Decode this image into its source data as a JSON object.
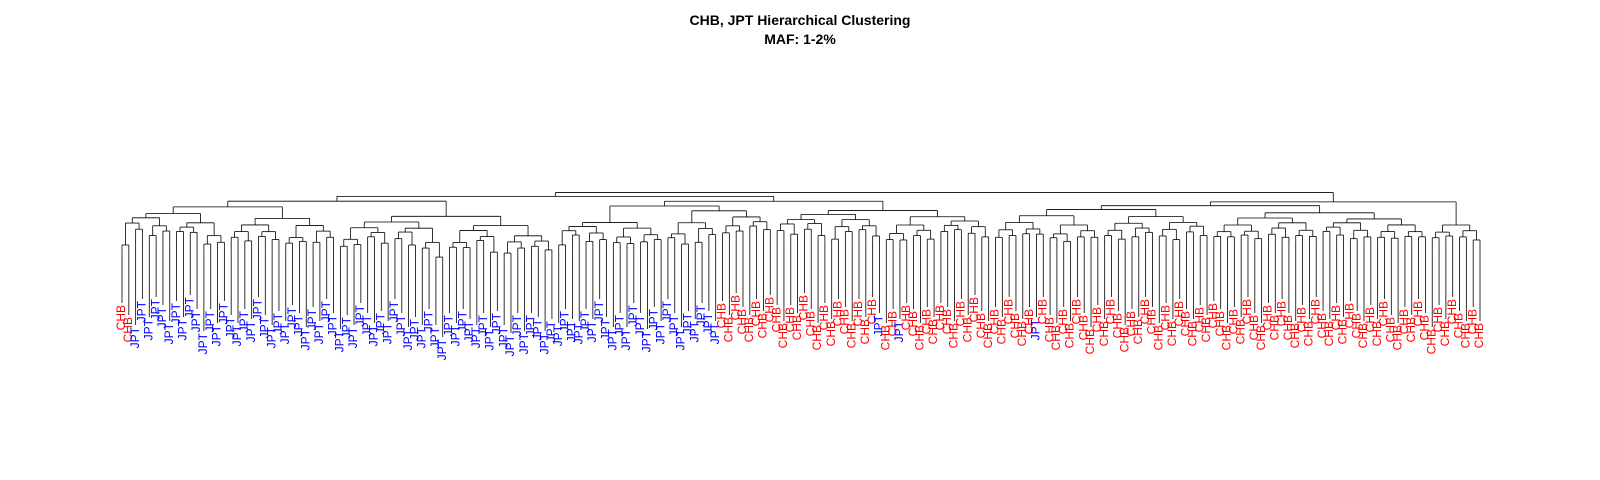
{
  "chart_data": {
    "type": "dendrogram",
    "title": "CHB, JPT Hierarchical Clustering",
    "subtitle": "MAF: 1-2%",
    "xlabel": "",
    "ylabel": "",
    "legend": "none",
    "colors": {
      "CHB": "#ff0000",
      "JPT": "#0000ff"
    },
    "leaf_labels": [
      "CHB",
      "CHB",
      "JPT",
      "JPT",
      "JPT",
      "JPT",
      "JPT",
      "JPT",
      "JPT",
      "JPT",
      "JPT",
      "JPT",
      "JPT",
      "JPT",
      "JPT",
      "JPT",
      "JPT",
      "JPT",
      "JPT",
      "JPT",
      "JPT",
      "JPT",
      "JPT",
      "JPT",
      "JPT",
      "JPT",
      "JPT",
      "JPT",
      "JPT",
      "JPT",
      "JPT",
      "JPT",
      "JPT",
      "JPT",
      "JPT",
      "JPT",
      "JPT",
      "JPT",
      "JPT",
      "JPT",
      "JPT",
      "JPT",
      "JPT",
      "JPT",
      "JPT",
      "JPT",
      "JPT",
      "JPT",
      "JPT",
      "JPT",
      "JPT",
      "JPT",
      "JPT",
      "JPT",
      "JPT",
      "JPT",
      "JPT",
      "JPT",
      "JPT",
      "JPT",
      "JPT",
      "JPT",
      "JPT",
      "JPT",
      "JPT",
      "JPT",
      "JPT",
      "JPT",
      "JPT",
      "JPT",
      "JPT",
      "JPT",
      "JPT",
      "JPT",
      "JPT",
      "JPT",
      "JPT",
      "JPT",
      "JPT",
      "JPT",
      "JPT",
      "JPT",
      "JPT",
      "JPT",
      "JPT",
      "JPT",
      "JPT",
      "JPT",
      "CHB",
      "CHB",
      "CHB",
      "CHB",
      "CHB",
      "CHB",
      "CHB",
      "CHB",
      "CHB",
      "CHB",
      "CHB",
      "CHB",
      "CHB",
      "CHB",
      "CHB",
      "CHB",
      "CHB",
      "CHB",
      "CHB",
      "CHB",
      "CHB",
      "CHB",
      "CHB",
      "JPT",
      "CHB",
      "CHB",
      "JPT",
      "CHB",
      "CHB",
      "CHB",
      "CHB",
      "CHB",
      "CHB",
      "CHB",
      "CHB",
      "CHB",
      "CHB",
      "CHB",
      "CHB",
      "CHB",
      "CHB",
      "CHB",
      "CHB",
      "CHB",
      "CHB",
      "CHB",
      "JPT",
      "CHB",
      "CHB",
      "CHB",
      "CHB",
      "CHB",
      "CHB",
      "CHB",
      "CHB",
      "CHB",
      "CHB",
      "CHB",
      "CHB",
      "CHB",
      "CHB",
      "CHB",
      "CHB",
      "CHB",
      "CHB",
      "CHB",
      "CHB",
      "CHB",
      "CHB",
      "CHB",
      "CHB",
      "CHB",
      "CHB",
      "CHB",
      "CHB",
      "CHB",
      "CHB",
      "CHB",
      "CHB",
      "CHB",
      "CHB",
      "CHB",
      "CHB",
      "CHB",
      "CHB",
      "CHB",
      "CHB",
      "CHB",
      "CHB",
      "CHB",
      "CHB",
      "CHB",
      "CHB",
      "CHB",
      "CHB",
      "CHB",
      "CHB",
      "CHB",
      "CHB",
      "CHB",
      "CHB",
      "CHB",
      "CHB",
      "CHB",
      "CHB",
      "CHB",
      "CHB",
      "CHB",
      "CHB",
      "CHB",
      "CHB",
      "CHB"
    ],
    "leaf_heights": [
      0.3,
      0.3,
      0.35,
      0.55,
      0.4,
      0.45,
      0.55,
      0.45,
      0.5,
      0.4,
      0.5,
      0.45,
      0.2,
      0.3,
      0.25,
      0.35,
      0.3,
      0.4,
      0.3,
      0.35,
      0.45,
      0.3,
      0.35,
      0.25,
      0.3,
      0.25,
      0.35,
      0.3,
      0.35,
      0.3,
      0.4,
      0.35,
      0.25,
      0.15,
      0.2,
      0.3,
      0.35,
      0.4,
      0.25,
      0.3,
      0.4,
      0.35,
      0.3,
      0.1,
      0.2,
      0.15,
      0.05,
      0.05,
      0.2,
      0.25,
      0.15,
      0.2,
      0.35,
      0.2,
      0.15,
      0.1,
      0.05,
      0.15,
      0.2,
      0.05,
      0.05,
      0.25,
      0.2,
      0.05,
      0.25,
      0.15,
      0.2,
      0.45,
      0.3,
      0.35,
      0.4,
      0.25,
      0.3,
      0.2,
      0.15,
      0.3,
      0.35,
      0.25,
      0.35,
      0.3,
      0.4,
      0.35,
      0.3,
      0.25,
      0.35,
      0.3,
      0.4,
      0.45,
      0.5,
      0.45,
      0.55,
      0.5,
      0.6,
      0.55,
      0.55,
      0.5,
      0.55,
      0.45,
      0.4,
      0.5,
      0.55,
      0.45,
      0.4,
      0.45,
      0.35,
      0.4,
      0.5,
      0.45,
      0.55,
      0.4,
      0.45,
      0.35,
      0.4,
      0.3,
      0.35,
      0.3,
      0.45,
      0.4,
      0.35,
      0.4,
      0.3,
      0.5,
      0.45,
      0.55,
      0.45,
      0.5,
      0.4,
      0.45,
      0.35,
      0.4,
      0.45,
      0.4,
      0.5,
      0.35,
      0.4,
      0.45,
      0.3,
      0.4,
      0.35,
      0.3,
      0.45,
      0.35,
      0.3,
      0.4,
      0.35,
      0.45,
      0.4,
      0.35,
      0.3,
      0.4,
      0.45,
      0.5,
      0.4,
      0.45,
      0.35,
      0.4,
      0.45,
      0.5,
      0.4,
      0.45,
      0.35,
      0.45,
      0.4,
      0.35,
      0.4,
      0.45,
      0.35,
      0.4,
      0.45,
      0.5,
      0.4,
      0.35,
      0.45,
      0.4,
      0.35,
      0.45,
      0.4,
      0.5,
      0.45,
      0.4,
      0.35,
      0.4,
      0.45,
      0.4,
      0.35,
      0.4,
      0.3,
      0.4,
      0.35,
      0.45,
      0.4,
      0.35,
      0.3,
      0.4,
      0.35,
      0.45,
      0.4,
      0.45,
      0.35,
      0.3
    ],
    "merge_heights": {
      "root": 1.0,
      "outer_chb_jpt_split": 0.97,
      "jpt_block": 0.9,
      "chb_block": 0.88
    }
  }
}
